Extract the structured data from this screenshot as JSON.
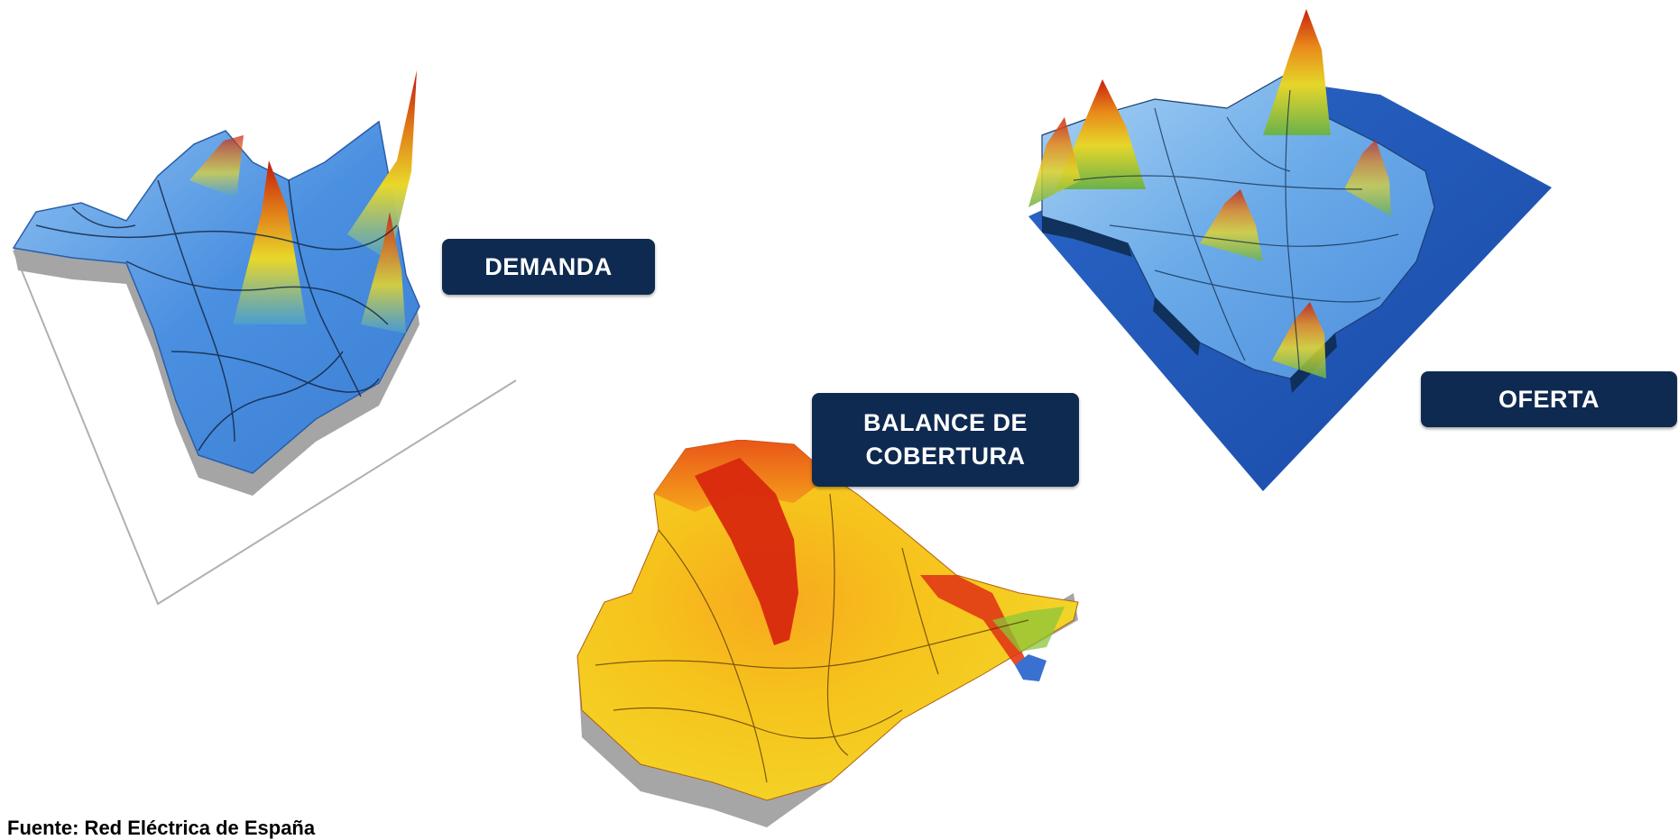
{
  "labels": {
    "demanda": "DEMANDA",
    "balance_line1": "BALANCE DE",
    "balance_line2": "COBERTURA",
    "oferta": "OFERTA"
  },
  "source": "Fuente: Red Eléctrica de España",
  "colors": {
    "label_bg": "#0f2a50",
    "label_text": "#ffffff",
    "demanda_surface": "#4a8fe0",
    "oferta_plane": "#1e56b8",
    "balance_surface": "#f5c21a",
    "peak_red": "#d42a12",
    "extrusion_gray": "#a9a9a9"
  }
}
